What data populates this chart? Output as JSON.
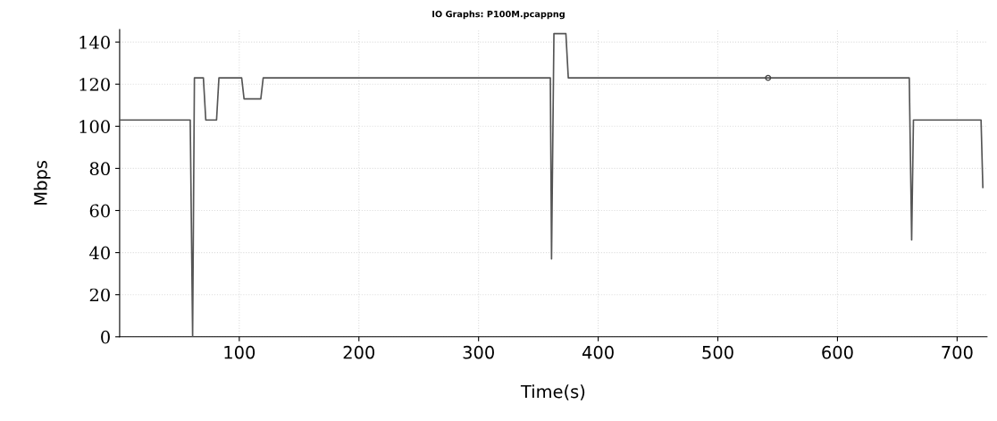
{
  "chart_data": {
    "type": "line",
    "title": "IO Graphs: P100M.pcappng",
    "xlabel": "Time(s)",
    "ylabel": "Mbps",
    "xlim": [
      0,
      725
    ],
    "xticks": [
      100,
      200,
      300,
      400,
      500,
      600,
      700
    ],
    "ylim": [
      0,
      146
    ],
    "yticks": [
      0,
      20,
      40,
      60,
      80,
      100,
      120,
      140
    ],
    "grid": true,
    "marker": "none",
    "line_style": "solid",
    "series": [
      {
        "color": "#555555",
        "x": [
          0,
          59,
          61,
          62.5,
          70,
          72,
          81,
          83,
          102,
          104,
          118,
          120,
          360,
          361,
          363,
          373,
          375,
          660,
          662,
          663.5,
          720,
          721.5
        ],
        "values": [
          103,
          103,
          0,
          123,
          123,
          103,
          103,
          123,
          123,
          113,
          113,
          123,
          123,
          37,
          144,
          144,
          123,
          123,
          46,
          103,
          103,
          71
        ]
      },
      {
        "type": "scatter",
        "marker": "circle",
        "color": "#444444",
        "x": [
          542
        ],
        "values": [
          123
        ]
      }
    ]
  }
}
